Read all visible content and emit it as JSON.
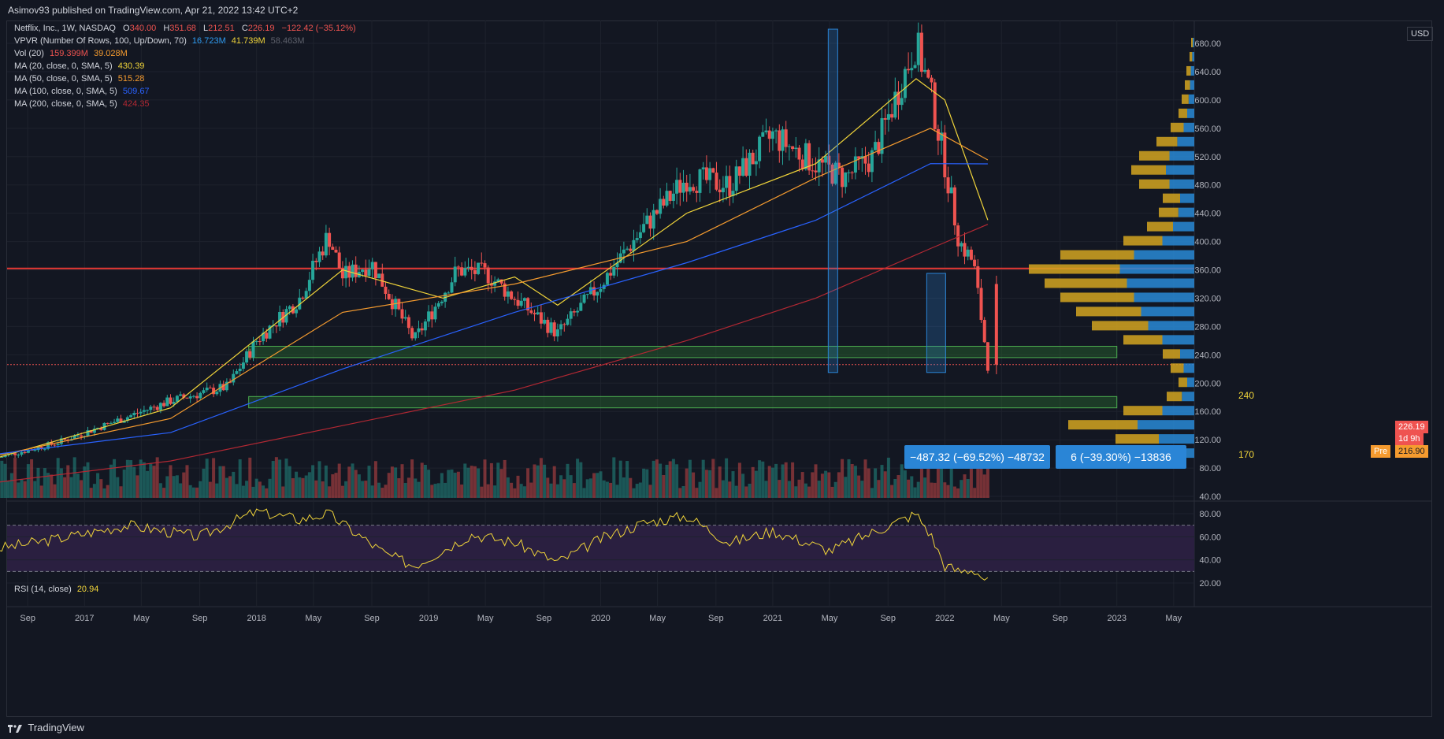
{
  "header": {
    "text": "Asimov93 published on TradingView.com, Apr 21, 2022 13:42 UTC+2"
  },
  "legend": {
    "symbol": "Netflix, Inc., 1W, NASDAQ",
    "o_label": "O",
    "o": "340.00",
    "h_label": "H",
    "h": "351.68",
    "l_label": "L",
    "l": "212.51",
    "c_label": "C",
    "c": "226.19",
    "chg": "−122.42 (−35.12%)",
    "vpvr_label": "VPVR (Number Of Rows, 100, Up/Down, 70)",
    "vpvr_v1": "16.723M",
    "vpvr_v2": "41.739M",
    "vpvr_v3": "58.463M",
    "vol_label": "Vol (20)",
    "vol_v1": "159.399M",
    "vol_v2": "39.028M",
    "ma20_label": "MA (20, close, 0, SMA, 5)",
    "ma20": "430.39",
    "ma50_label": "MA (50, close, 0, SMA, 5)",
    "ma50": "515.28",
    "ma100_label": "MA (100, close, 0, SMA, 5)",
    "ma100": "509.67",
    "ma200_label": "MA (200, close, 0, SMA, 5)",
    "ma200": "424.35",
    "rsi_label": "RSI (14, close)",
    "rsi": "20.94"
  },
  "price_tags": {
    "currency": "USD",
    "last": "226.19",
    "countdown": "1d 9h",
    "pre_label": "Pre",
    "pre": "216.90"
  },
  "annotations": {
    "zone_upper": "240",
    "zone_lower": "170",
    "measure_1": "−487.32 (−69.52%) −48732",
    "measure_2": "6 (−39.30%) −13836"
  },
  "footer": {
    "brand": "TradingView"
  },
  "colors": {
    "bg": "#131722",
    "up": "#26a69a",
    "down": "#ef5350",
    "grid": "#1e222d",
    "ma20": "#f0d43a",
    "ma50": "#f59b2f",
    "ma100": "#2962ff",
    "ma200": "#b22833",
    "rsi": "#f0d43a",
    "rsi_band": "#2a1f40",
    "resistance": "#e53935",
    "zone": "#2e7d32",
    "measure": "#2a85d6"
  },
  "chart_data": [
    {
      "type": "candlestick",
      "title": "Netflix, Inc., 1W, NASDAQ",
      "x_ticks": [
        "Sep",
        "2017",
        "May",
        "Sep",
        "2018",
        "May",
        "Sep",
        "2019",
        "May",
        "Sep",
        "2020",
        "May",
        "Sep",
        "2021",
        "May",
        "Sep",
        "2022",
        "May",
        "Sep",
        "2023",
        "May"
      ],
      "y_ticks": [
        680,
        640,
        600,
        560,
        520,
        480,
        440,
        400,
        360,
        320,
        280,
        240,
        200,
        160,
        120,
        80,
        40
      ],
      "ylim": [
        35,
        710
      ],
      "price_path": [
        [
          "2016-07",
          95
        ],
        [
          "2016-11",
          115
        ],
        [
          "2017-03",
          145
        ],
        [
          "2017-07",
          175
        ],
        [
          "2017-11",
          195
        ],
        [
          "2018-01",
          260
        ],
        [
          "2018-04",
          320
        ],
        [
          "2018-06",
          410
        ],
        [
          "2018-07",
          350
        ],
        [
          "2018-09",
          370
        ],
        [
          "2018-12",
          260
        ],
        [
          "2019-03",
          360
        ],
        [
          "2019-05",
          355
        ],
        [
          "2019-07",
          320
        ],
        [
          "2019-10",
          270
        ],
        [
          "2020-01",
          340
        ],
        [
          "2020-04",
          420
        ],
        [
          "2020-07",
          490
        ],
        [
          "2020-10",
          480
        ],
        [
          "2021-01",
          550
        ],
        [
          "2021-04",
          510
        ],
        [
          "2021-06",
          490
        ],
        [
          "2021-08",
          520
        ],
        [
          "2021-11",
          680
        ],
        [
          "2021-12",
          610
        ],
        [
          "2022-01",
          510
        ],
        [
          "2022-02",
          400
        ],
        [
          "2022-03",
          370
        ],
        [
          "2022-04",
          226.19
        ]
      ],
      "ma_series": [
        {
          "name": "MA (20, close, 0, SMA, 5)",
          "points": [
            [
              "2016-07",
              95
            ],
            [
              "2017-07",
              165
            ],
            [
              "2018-07",
              360
            ],
            [
              "2019-02",
              320
            ],
            [
              "2019-07",
              350
            ],
            [
              "2019-10",
              310
            ],
            [
              "2020-07",
              440
            ],
            [
              "2021-04",
              510
            ],
            [
              "2021-11",
              630
            ],
            [
              "2022-01",
              600
            ],
            [
              "2022-04",
              430.39
            ]
          ]
        },
        {
          "name": "MA (50, close, 0, SMA, 5)",
          "points": [
            [
              "2016-07",
              98
            ],
            [
              "2017-07",
              150
            ],
            [
              "2018-07",
              300
            ],
            [
              "2019-07",
              340
            ],
            [
              "2020-07",
              400
            ],
            [
              "2021-04",
              490
            ],
            [
              "2021-12",
              560
            ],
            [
              "2022-04",
              515.28
            ]
          ]
        },
        {
          "name": "MA (100, close, 0, SMA, 5)",
          "points": [
            [
              "2016-07",
              100
            ],
            [
              "2017-07",
              130
            ],
            [
              "2018-07",
              220
            ],
            [
              "2019-07",
              300
            ],
            [
              "2020-07",
              370
            ],
            [
              "2021-04",
              430
            ],
            [
              "2021-12",
              510
            ],
            [
              "2022-04",
              509.67
            ]
          ]
        },
        {
          "name": "MA (200, close, 0, SMA, 5)",
          "points": [
            [
              "2016-07",
              60
            ],
            [
              "2017-07",
              90
            ],
            [
              "2018-07",
              140
            ],
            [
              "2019-07",
              190
            ],
            [
              "2020-07",
              260
            ],
            [
              "2021-04",
              320
            ],
            [
              "2021-12",
              390
            ],
            [
              "2022-04",
              424.35
            ]
          ]
        }
      ],
      "horizontal_lines": [
        {
          "value": 362,
          "color": "#e53935"
        }
      ],
      "zones": [
        {
          "label": "240",
          "from": 236,
          "to": 252
        },
        {
          "label": "170",
          "from": 165,
          "to": 181
        }
      ]
    },
    {
      "type": "line",
      "title": "RSI (14, close)",
      "y_ticks": [
        80,
        60,
        40,
        20
      ],
      "ylim": [
        15,
        88
      ],
      "band": [
        30,
        70
      ],
      "points": [
        [
          "2016-07",
          50
        ],
        [
          "2016-11",
          58
        ],
        [
          "2017-04",
          70
        ],
        [
          "2017-09",
          60
        ],
        [
          "2018-01",
          82
        ],
        [
          "2018-04",
          75
        ],
        [
          "2018-06",
          80
        ],
        [
          "2018-10",
          45
        ],
        [
          "2018-12",
          35
        ],
        [
          "2019-04",
          62
        ],
        [
          "2019-07",
          55
        ],
        [
          "2019-10",
          38
        ],
        [
          "2020-01",
          58
        ],
        [
          "2020-04",
          72
        ],
        [
          "2020-07",
          78
        ],
        [
          "2020-10",
          55
        ],
        [
          "2021-01",
          65
        ],
        [
          "2021-05",
          48
        ],
        [
          "2021-11",
          80
        ],
        [
          "2021-12",
          62
        ],
        [
          "2022-01",
          35
        ],
        [
          "2022-02",
          30
        ],
        [
          "2022-03",
          32
        ],
        [
          "2022-04",
          20.94
        ]
      ]
    }
  ]
}
